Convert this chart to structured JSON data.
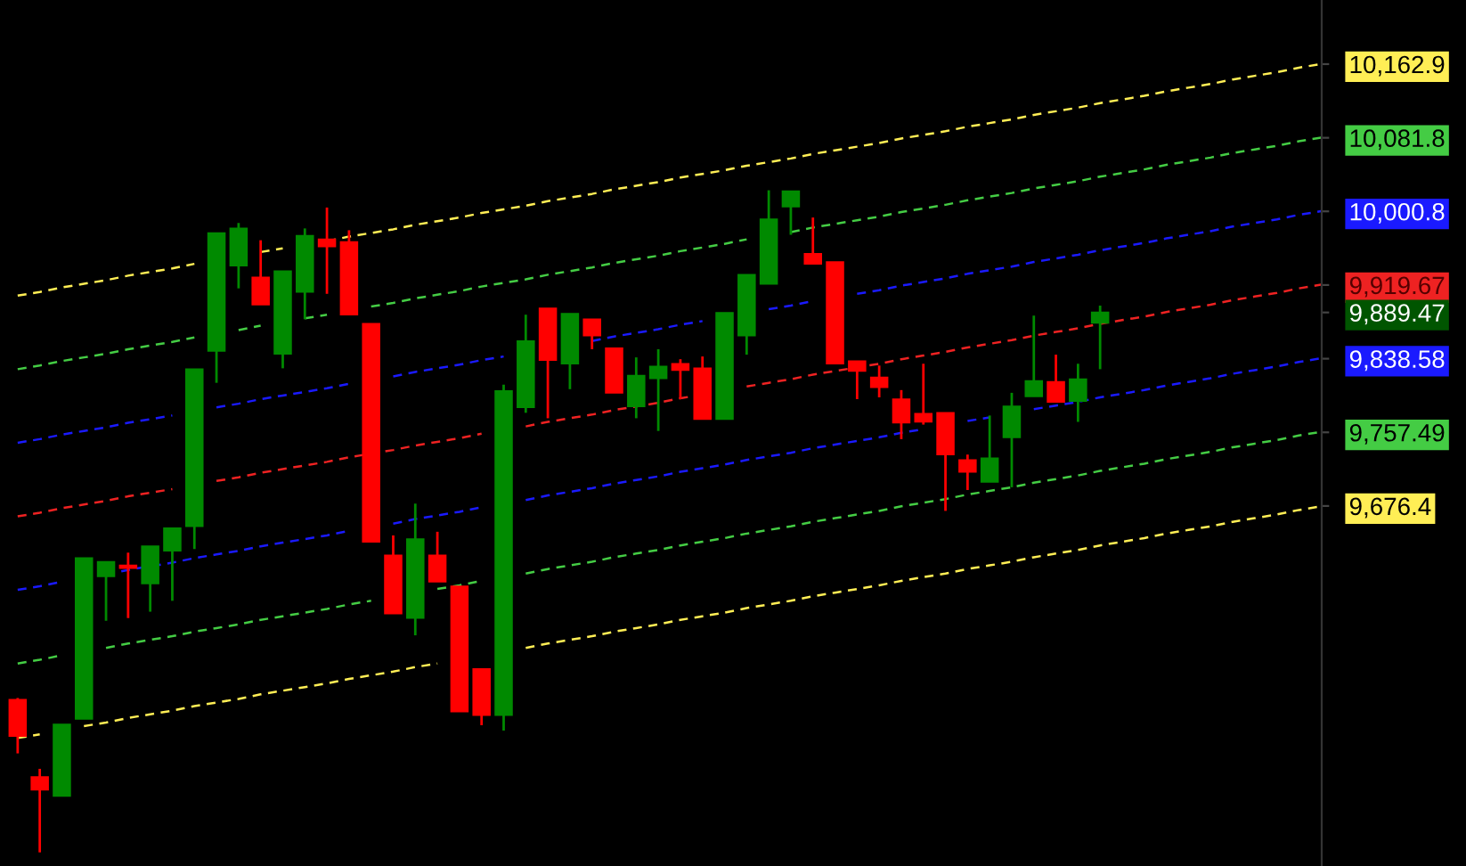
{
  "chart_data": {
    "type": "candlestick",
    "categories": [
      null,
      null,
      null,
      null,
      null,
      null,
      null,
      null,
      null,
      null,
      null,
      null,
      null,
      null,
      null,
      null,
      null,
      null,
      null,
      null,
      null,
      null,
      null,
      null,
      null,
      null,
      null,
      null,
      null,
      null,
      null,
      null,
      null,
      null,
      null,
      null,
      null,
      null,
      null,
      null,
      null,
      null,
      null,
      null,
      null,
      null,
      null,
      null,
      null,
      null,
      null,
      null,
      null,
      null,
      null,
      null,
      null,
      null,
      null,
      null
    ],
    "ohlc": [
      [
        9463,
        9465,
        9404,
        9423
      ],
      [
        9378,
        9387,
        9295,
        9364
      ],
      [
        9357,
        9436,
        9357,
        9436
      ],
      [
        9442,
        9619,
        9442,
        9619
      ],
      [
        9599,
        9615,
        9550,
        9615
      ],
      [
        9611,
        9625,
        9553,
        9608
      ],
      [
        9591,
        9632,
        9560,
        9632
      ],
      [
        9627,
        9652,
        9572,
        9652
      ],
      [
        9654,
        9827,
        9629,
        9827
      ],
      [
        9847,
        9977,
        9812,
        9977
      ],
      [
        9941,
        9988,
        9916,
        9982
      ],
      [
        9928,
        9969,
        9898,
        9898
      ],
      [
        9844,
        9935,
        9828,
        9935
      ],
      [
        9912,
        9982,
        9882,
        9974
      ],
      [
        9970,
        10005,
        9910,
        9962
      ],
      [
        9967,
        9980,
        9887,
        9887
      ],
      [
        9877,
        9877,
        9637,
        9637
      ],
      [
        9622,
        9644,
        9558,
        9558
      ],
      [
        9553,
        9679,
        9534,
        9640
      ],
      [
        9622,
        9648,
        9593,
        9593
      ],
      [
        9588,
        9588,
        9450,
        9450
      ],
      [
        9497,
        9497,
        9435,
        9446
      ],
      [
        9446,
        9810,
        9429,
        9803
      ],
      [
        9785,
        9887,
        9779,
        9858
      ],
      [
        9894,
        9894,
        9773,
        9837
      ],
      [
        9833,
        9888,
        9805,
        9888
      ],
      [
        9882,
        9882,
        9849,
        9864
      ],
      [
        9850,
        9850,
        9801,
        9801
      ],
      [
        9786,
        9840,
        9773,
        9820
      ],
      [
        9817,
        9849,
        9759,
        9830
      ],
      [
        9833,
        9838,
        9794,
        9826
      ],
      [
        9828,
        9841,
        9772,
        9772
      ],
      [
        9772,
        9889,
        9772,
        9889
      ],
      [
        9864,
        9931,
        9843,
        9931
      ],
      [
        9921,
        10024,
        9921,
        9992
      ],
      [
        10006,
        10023,
        9975,
        10023
      ],
      [
        9954,
        9994,
        9943,
        9943
      ],
      [
        9945,
        9945,
        9833,
        9833
      ],
      [
        9836,
        9836,
        9794,
        9825
      ],
      [
        9818,
        9831,
        9796,
        9807
      ],
      [
        9794,
        9804,
        9750,
        9768
      ],
      [
        9778,
        9833,
        9766,
        9769
      ],
      [
        9779,
        9779,
        9671,
        9733
      ],
      [
        9727,
        9733,
        9694,
        9714
      ],
      [
        9703,
        9776,
        9703,
        9729
      ],
      [
        9752,
        9801,
        9697,
        9786
      ],
      [
        9797,
        9886,
        9797,
        9814
      ],
      [
        9813,
        9843,
        9791,
        9791
      ],
      [
        9792,
        9833,
        9769,
        9816
      ],
      [
        9878,
        9897,
        9827,
        9889.47
      ],
      null,
      null,
      null,
      null,
      null,
      null,
      null,
      null,
      null,
      null
    ],
    "colors": [
      "#ff0000",
      "#ff0000",
      "#008a00",
      "#008a00",
      "#008a00",
      "#ff0000",
      "#008a00",
      "#008a00",
      "#008a00",
      "#008a00",
      "#008a00",
      "#ff0000",
      "#008a00",
      "#008a00",
      "#ff0000",
      "#ff0000",
      "#ff0000",
      "#ff0000",
      "#008a00",
      "#ff0000",
      "#ff0000",
      "#ff0000",
      "#008a00",
      "#008a00",
      "#ff0000",
      "#008a00",
      "#ff0000",
      "#ff0000",
      "#008a00",
      "#008a00",
      "#ff0000",
      "#ff0000",
      "#008a00",
      "#008a00",
      "#008a00",
      "#008a00",
      "#ff0000",
      "#ff0000",
      "#ff0000",
      "#ff0000",
      "#ff0000",
      "#ff0000",
      "#ff0000",
      "#ff0000",
      "#008a00",
      "#008a00",
      "#008a00",
      "#ff0000",
      "#008a00",
      "#008a00",
      null,
      null,
      null,
      null,
      null,
      null,
      null,
      null,
      null,
      null
    ],
    "series": [
      {
        "type": "line",
        "color": "#ffee55",
        "line_style": "dashed",
        "values": [
          9908,
          9912,
          9917,
          9921,
          9925,
          9930,
          9934,
          9938,
          9943,
          null,
          null,
          9956,
          9960,
          null,
          9968,
          9973,
          9977,
          9981,
          9986,
          9990,
          9994,
          9999,
          10003,
          10007,
          10012,
          10016,
          10020,
          10025,
          10029,
          10033,
          10038,
          10042,
          10046,
          10051,
          10055,
          10059,
          10064,
          10068,
          10072,
          10076,
          10081,
          10085,
          10089,
          10094,
          10098,
          10102,
          10107,
          10111,
          10115,
          10120,
          10124,
          10128,
          10133,
          10137,
          10141,
          10146,
          10150,
          10154,
          10159,
          10163
        ]
      },
      {
        "type": "line",
        "color": "#44cc44",
        "line_style": "dashed",
        "values": [
          9827,
          9831,
          9836,
          9840,
          9844,
          9849,
          9853,
          9857,
          9862,
          null,
          9870,
          9875,
          null,
          9883,
          9887,
          null,
          9896,
          9900,
          9905,
          9909,
          9913,
          9918,
          9922,
          9926,
          9931,
          9935,
          9939,
          9944,
          9948,
          9952,
          9957,
          9961,
          9965,
          9970,
          null,
          9978,
          9983,
          9987,
          9991,
          9995,
          10000,
          10004,
          10008,
          10013,
          10017,
          10021,
          10026,
          10030,
          10034,
          10039,
          10043,
          10047,
          10052,
          10056,
          10060,
          10065,
          10069,
          10073,
          10078,
          10082
        ]
      },
      {
        "type": "line",
        "color": "#1a1aff",
        "line_style": "dashed",
        "values": [
          9746,
          9750,
          9755,
          9759,
          9763,
          9768,
          9772,
          9776,
          null,
          9785,
          9789,
          9794,
          9798,
          9802,
          9806,
          9811,
          null,
          9819,
          9824,
          9828,
          9832,
          9837,
          9841,
          null,
          null,
          null,
          9858,
          9863,
          9867,
          9871,
          9876,
          9880,
          null,
          null,
          9893,
          9897,
          9902,
          null,
          9910,
          9914,
          9919,
          9923,
          9927,
          9932,
          9936,
          9940,
          9945,
          9949,
          9953,
          9958,
          9962,
          9966,
          9971,
          9975,
          9979,
          9984,
          9988,
          9992,
          9997,
          10001
        ]
      },
      {
        "type": "line",
        "color": "#ee2222",
        "line_style": "dashed",
        "values": [
          9665,
          9669,
          9674,
          9678,
          9682,
          9687,
          9691,
          9695,
          null,
          9704,
          9708,
          9713,
          9717,
          9721,
          9725,
          9730,
          9734,
          9738,
          9743,
          9747,
          9751,
          9756,
          null,
          9764,
          9769,
          9773,
          9777,
          9782,
          9786,
          9790,
          9795,
          9799,
          null,
          9808,
          9812,
          9816,
          9821,
          9825,
          9829,
          9833,
          9838,
          9842,
          9846,
          9851,
          9855,
          9859,
          9864,
          9868,
          9872,
          9877,
          9881,
          9885,
          9890,
          9894,
          9898,
          9903,
          9907,
          9911,
          9916,
          9920
        ]
      },
      {
        "type": "line",
        "color": "#1a1aff",
        "line_style": "dashed",
        "values": [
          9584,
          9588,
          9593,
          null,
          9601,
          9606,
          9610,
          9614,
          9619,
          9623,
          9627,
          9632,
          9636,
          9640,
          9644,
          9649,
          null,
          9657,
          9662,
          9666,
          9670,
          9675,
          null,
          9683,
          9688,
          9692,
          9696,
          9701,
          9705,
          9709,
          9714,
          9718,
          9722,
          9727,
          9731,
          9735,
          9740,
          9744,
          9748,
          9752,
          9757,
          9761,
          null,
          9770,
          9774,
          null,
          9783,
          9787,
          9791,
          9796,
          9800,
          9804,
          9809,
          9813,
          9817,
          9822,
          9826,
          9830,
          9835,
          9839
        ]
      },
      {
        "type": "line",
        "color": "#44cc44",
        "line_style": "dashed",
        "values": [
          9503,
          9507,
          9512,
          null,
          9520,
          9525,
          9529,
          9533,
          9538,
          9542,
          9546,
          9551,
          9555,
          9559,
          9563,
          9568,
          9572,
          null,
          null,
          9585,
          9589,
          9594,
          null,
          9602,
          9607,
          9611,
          9615,
          9620,
          9624,
          9628,
          9633,
          9637,
          9641,
          9646,
          9650,
          9654,
          9659,
          9663,
          9667,
          9671,
          9676,
          9680,
          9684,
          9689,
          9693,
          9697,
          9702,
          9706,
          9710,
          9715,
          9719,
          9723,
          9728,
          9732,
          9736,
          9741,
          9745,
          9749,
          9754,
          9758
        ]
      },
      {
        "type": "line",
        "color": "#ffee55",
        "line_style": "dashed",
        "values": [
          9421,
          9425,
          null,
          9434,
          9438,
          9443,
          9447,
          9451,
          9456,
          9460,
          9464,
          9469,
          9473,
          9477,
          9481,
          9486,
          9490,
          9494,
          9499,
          9503,
          null,
          null,
          null,
          9520,
          9525,
          9529,
          9533,
          9538,
          9542,
          9546,
          9551,
          9555,
          9559,
          9564,
          9568,
          9572,
          9577,
          9581,
          9585,
          9589,
          9594,
          9598,
          9602,
          9607,
          9611,
          9615,
          9620,
          9624,
          9628,
          9633,
          9637,
          9641,
          9646,
          9650,
          9654,
          9659,
          9663,
          9667,
          9672,
          9676
        ]
      }
    ],
    "ylim": [
      9280,
      10233.5
    ],
    "yticks": [
      {
        "value": 10162.9,
        "label": "10,162.9"
      },
      {
        "value": 10081.8,
        "label": "10,081.8"
      },
      {
        "value": 10000.8,
        "label": "10,000.8"
      },
      {
        "value": 9919.67,
        "label": "9,919.67"
      },
      {
        "value": 9889.47,
        "label": "9,889.47"
      },
      {
        "value": 9838.58,
        "label": "9,838.58"
      },
      {
        "value": 9757.49,
        "label": "9,757.49"
      },
      {
        "value": 9676.4,
        "label": "9,676.4"
      }
    ],
    "tick_labels": "y",
    "grid": false,
    "legend": false
  }
}
